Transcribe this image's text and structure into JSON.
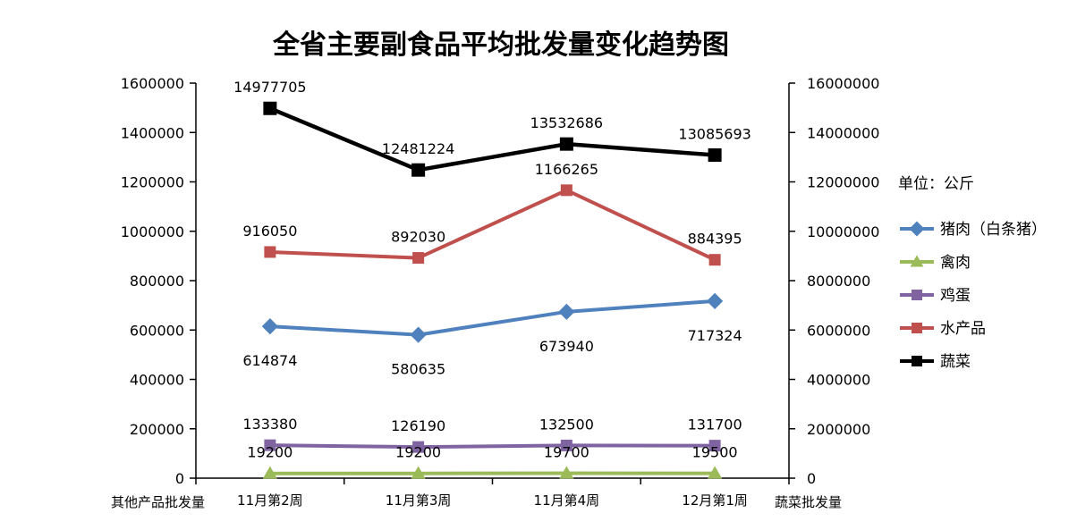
{
  "chart_data": {
    "type": "line",
    "title": "全省主要副食品平均批发量变化趋势图",
    "unit_note": "单位：公斤",
    "left_axis_label": "其他产品批发量",
    "right_axis_label": "蔬菜批发量",
    "categories": [
      "11月第2周",
      "11月第3周",
      "11月第4周",
      "12月第1周"
    ],
    "y_left": {
      "min": 0,
      "max": 1600000,
      "step": 200000,
      "ticks": [
        "0",
        "200000",
        "400000",
        "600000",
        "800000",
        "1000000",
        "1200000",
        "1400000",
        "1600000"
      ]
    },
    "y_right": {
      "min": 0,
      "max": 16000000,
      "step": 2000000,
      "ticks": [
        "0",
        "2000000",
        "4000000",
        "6000000",
        "8000000",
        "10000000",
        "12000000",
        "14000000",
        "16000000"
      ]
    },
    "grid": false,
    "legend_position": "right",
    "series": [
      {
        "name": "猪肉（白条猪）",
        "axis": "left",
        "color": "#4F81BD",
        "marker": "diamond",
        "values": [
          614874,
          580635,
          673940,
          717324
        ],
        "labels": [
          "614874",
          "580635",
          "673940",
          "717324"
        ],
        "label_pos": "below"
      },
      {
        "name": "禽肉",
        "axis": "left",
        "color": "#9BBB59",
        "marker": "triangle",
        "values": [
          19200,
          19200,
          19700,
          19500
        ],
        "labels": [
          "19200",
          "19200",
          "19700",
          "19500"
        ],
        "label_pos": "above"
      },
      {
        "name": "鸡蛋",
        "axis": "left",
        "color": "#8064A2",
        "marker": "square",
        "values": [
          133380,
          126190,
          132500,
          131700
        ],
        "labels": [
          "133380",
          "126190",
          "132500",
          "131700"
        ],
        "label_pos": "above"
      },
      {
        "name": "水产品",
        "axis": "left",
        "color": "#C0504D",
        "marker": "square",
        "values": [
          916050,
          892030,
          1166265,
          884395
        ],
        "labels": [
          "916050",
          "892030",
          "1166265",
          "884395"
        ],
        "label_pos": "above"
      },
      {
        "name": "蔬菜",
        "axis": "right",
        "color": "#000000",
        "marker": "square",
        "values": [
          14977705,
          12481224,
          13532686,
          13085693
        ],
        "labels": [
          "14977705",
          "12481224",
          "13532686",
          "13085693"
        ],
        "label_pos": "above"
      }
    ]
  }
}
